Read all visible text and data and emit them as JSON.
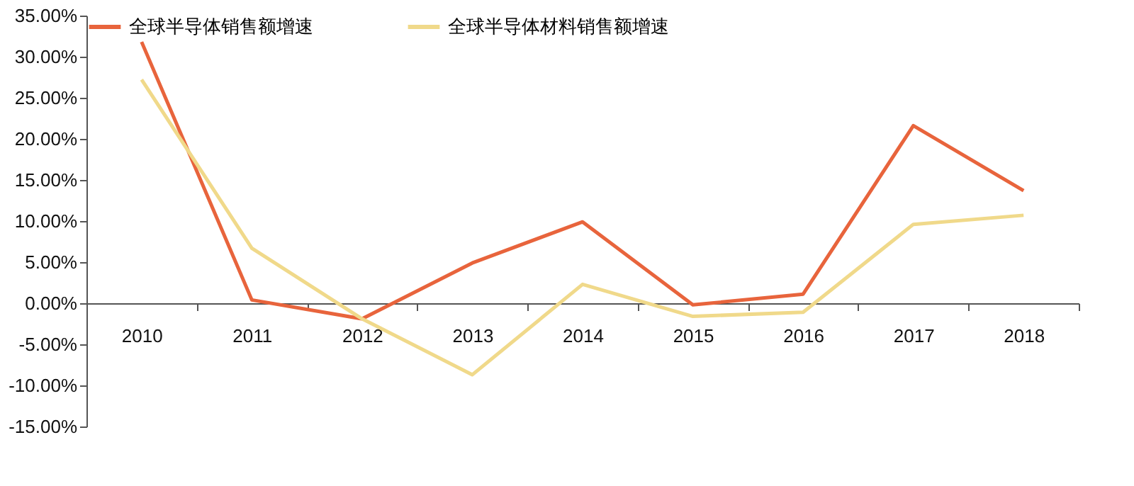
{
  "chart_data": {
    "type": "line",
    "categories": [
      "2010",
      "2011",
      "2012",
      "2013",
      "2014",
      "2015",
      "2016",
      "2017",
      "2018"
    ],
    "series": [
      {
        "name": "全球半导体销售额增速",
        "color": "#e8643c",
        "values": [
          31.8,
          0.4,
          -1.9,
          4.9,
          9.9,
          -0.2,
          1.1,
          21.6,
          13.7
        ]
      },
      {
        "name": "全球半导体材料销售额增速",
        "color": "#f0d98a",
        "values": [
          27.2,
          6.7,
          -1.9,
          -8.7,
          2.3,
          -1.6,
          -1.1,
          9.6,
          10.7
        ]
      }
    ],
    "ylim": [
      -15,
      35
    ],
    "yticks": [
      {
        "value": -15,
        "label": "-15.00%"
      },
      {
        "value": -10,
        "label": "-10.00%"
      },
      {
        "value": -5,
        "label": "-5.00%"
      },
      {
        "value": 0,
        "label": "0.00%"
      },
      {
        "value": 5,
        "label": "5.00%"
      },
      {
        "value": 10,
        "label": "10.00%"
      },
      {
        "value": 15,
        "label": "15.00%"
      },
      {
        "value": 20,
        "label": "20.00%"
      },
      {
        "value": 25,
        "label": "25.00%"
      },
      {
        "value": 30,
        "label": "30.00%"
      },
      {
        "value": 35,
        "label": "35.00%"
      }
    ],
    "grid": false,
    "legend": "top",
    "marker": "none",
    "line_style": "solid"
  }
}
